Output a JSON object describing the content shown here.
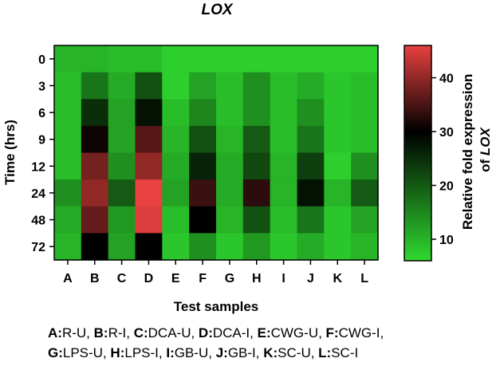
{
  "chart_data": {
    "type": "heatmap",
    "title": "LOX",
    "xlabel": "Test samples",
    "ylabel": "Time (hrs)",
    "x_categories": [
      "A",
      "B",
      "C",
      "D",
      "E",
      "F",
      "G",
      "H",
      "I",
      "J",
      "K",
      "L"
    ],
    "y_categories": [
      "0",
      "3",
      "6",
      "9",
      "12",
      "24",
      "48",
      "72"
    ],
    "values": [
      [
        10,
        10,
        9,
        9,
        7,
        7,
        7,
        7,
        7,
        7,
        7,
        7
      ],
      [
        9,
        17,
        11,
        21,
        7,
        12,
        9,
        14,
        9,
        11,
        8,
        9
      ],
      [
        9,
        25,
        12,
        28,
        9,
        15,
        9,
        14,
        9,
        14,
        8,
        9
      ],
      [
        9,
        31,
        12,
        36,
        10,
        21,
        10,
        20,
        9,
        17,
        8,
        9
      ],
      [
        9,
        38,
        14,
        40,
        11,
        26,
        11,
        22,
        10,
        23,
        7,
        14
      ],
      [
        14,
        40,
        20,
        46,
        12,
        34,
        11,
        33,
        10,
        28,
        10,
        20
      ],
      [
        11,
        37,
        13,
        45,
        9,
        30,
        10,
        21,
        9,
        17,
        8,
        12
      ],
      [
        10,
        30,
        12,
        30,
        8,
        14,
        8,
        13,
        8,
        11,
        8,
        10
      ]
    ],
    "colorbar": {
      "label_parts": [
        "Relative fold expression",
        "of ",
        "LOX"
      ],
      "ticks": [
        10,
        20,
        30,
        40
      ],
      "min": 6,
      "max": 46,
      "colors": {
        "low": "#2fd82f",
        "mid": "#000000",
        "high": "#e8413f"
      }
    },
    "grid": false
  },
  "legend_lines": [
    [
      {
        "key": "A:",
        "val": "R-U, "
      },
      {
        "key": "B:",
        "val": "R-I, "
      },
      {
        "key": "C:",
        "val": "DCA-U, "
      },
      {
        "key": "D:",
        "val": "DCA-I, "
      },
      {
        "key": "E:",
        "val": "CWG-U, "
      },
      {
        "key": "F:",
        "val": "CWG-I,"
      }
    ],
    [
      {
        "key": "G:",
        "val": "LPS-U, "
      },
      {
        "key": "H:",
        "val": "LPS-I, "
      },
      {
        "key": "I:",
        "val": "GB-U, "
      },
      {
        "key": "J:",
        "val": "GB-I, "
      },
      {
        "key": "K:",
        "val": "SC-U, "
      },
      {
        "key": "L:",
        "val": "SC-I"
      }
    ]
  ]
}
